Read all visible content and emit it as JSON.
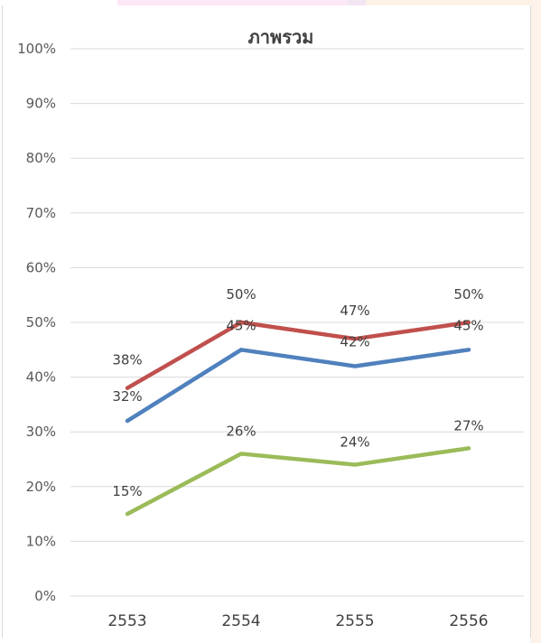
{
  "chart_data": {
    "type": "line",
    "title": "ภาพรวม",
    "xlabel": "",
    "ylabel": "",
    "categories": [
      "2553",
      "2554",
      "2555",
      "2556"
    ],
    "ylim": [
      0,
      100
    ],
    "y_ticks": [
      "0%",
      "10%",
      "20%",
      "30%",
      "40%",
      "50%",
      "60%",
      "70%",
      "80%",
      "90%",
      "100%"
    ],
    "grid": true,
    "legend": "none",
    "series": [
      {
        "color": "#c0504d",
        "values": [
          38,
          50,
          47,
          50
        ],
        "labels": [
          "38%",
          "50%",
          "47%",
          "50%"
        ]
      },
      {
        "color": "#4f81bd",
        "values": [
          32,
          45,
          42,
          45
        ],
        "labels": [
          "32%",
          "45%",
          "42%",
          "45%"
        ]
      },
      {
        "color": "#9bbb59",
        "values": [
          15,
          26,
          24,
          27
        ],
        "labels": [
          "15%",
          "26%",
          "24%",
          "27%"
        ]
      }
    ]
  }
}
